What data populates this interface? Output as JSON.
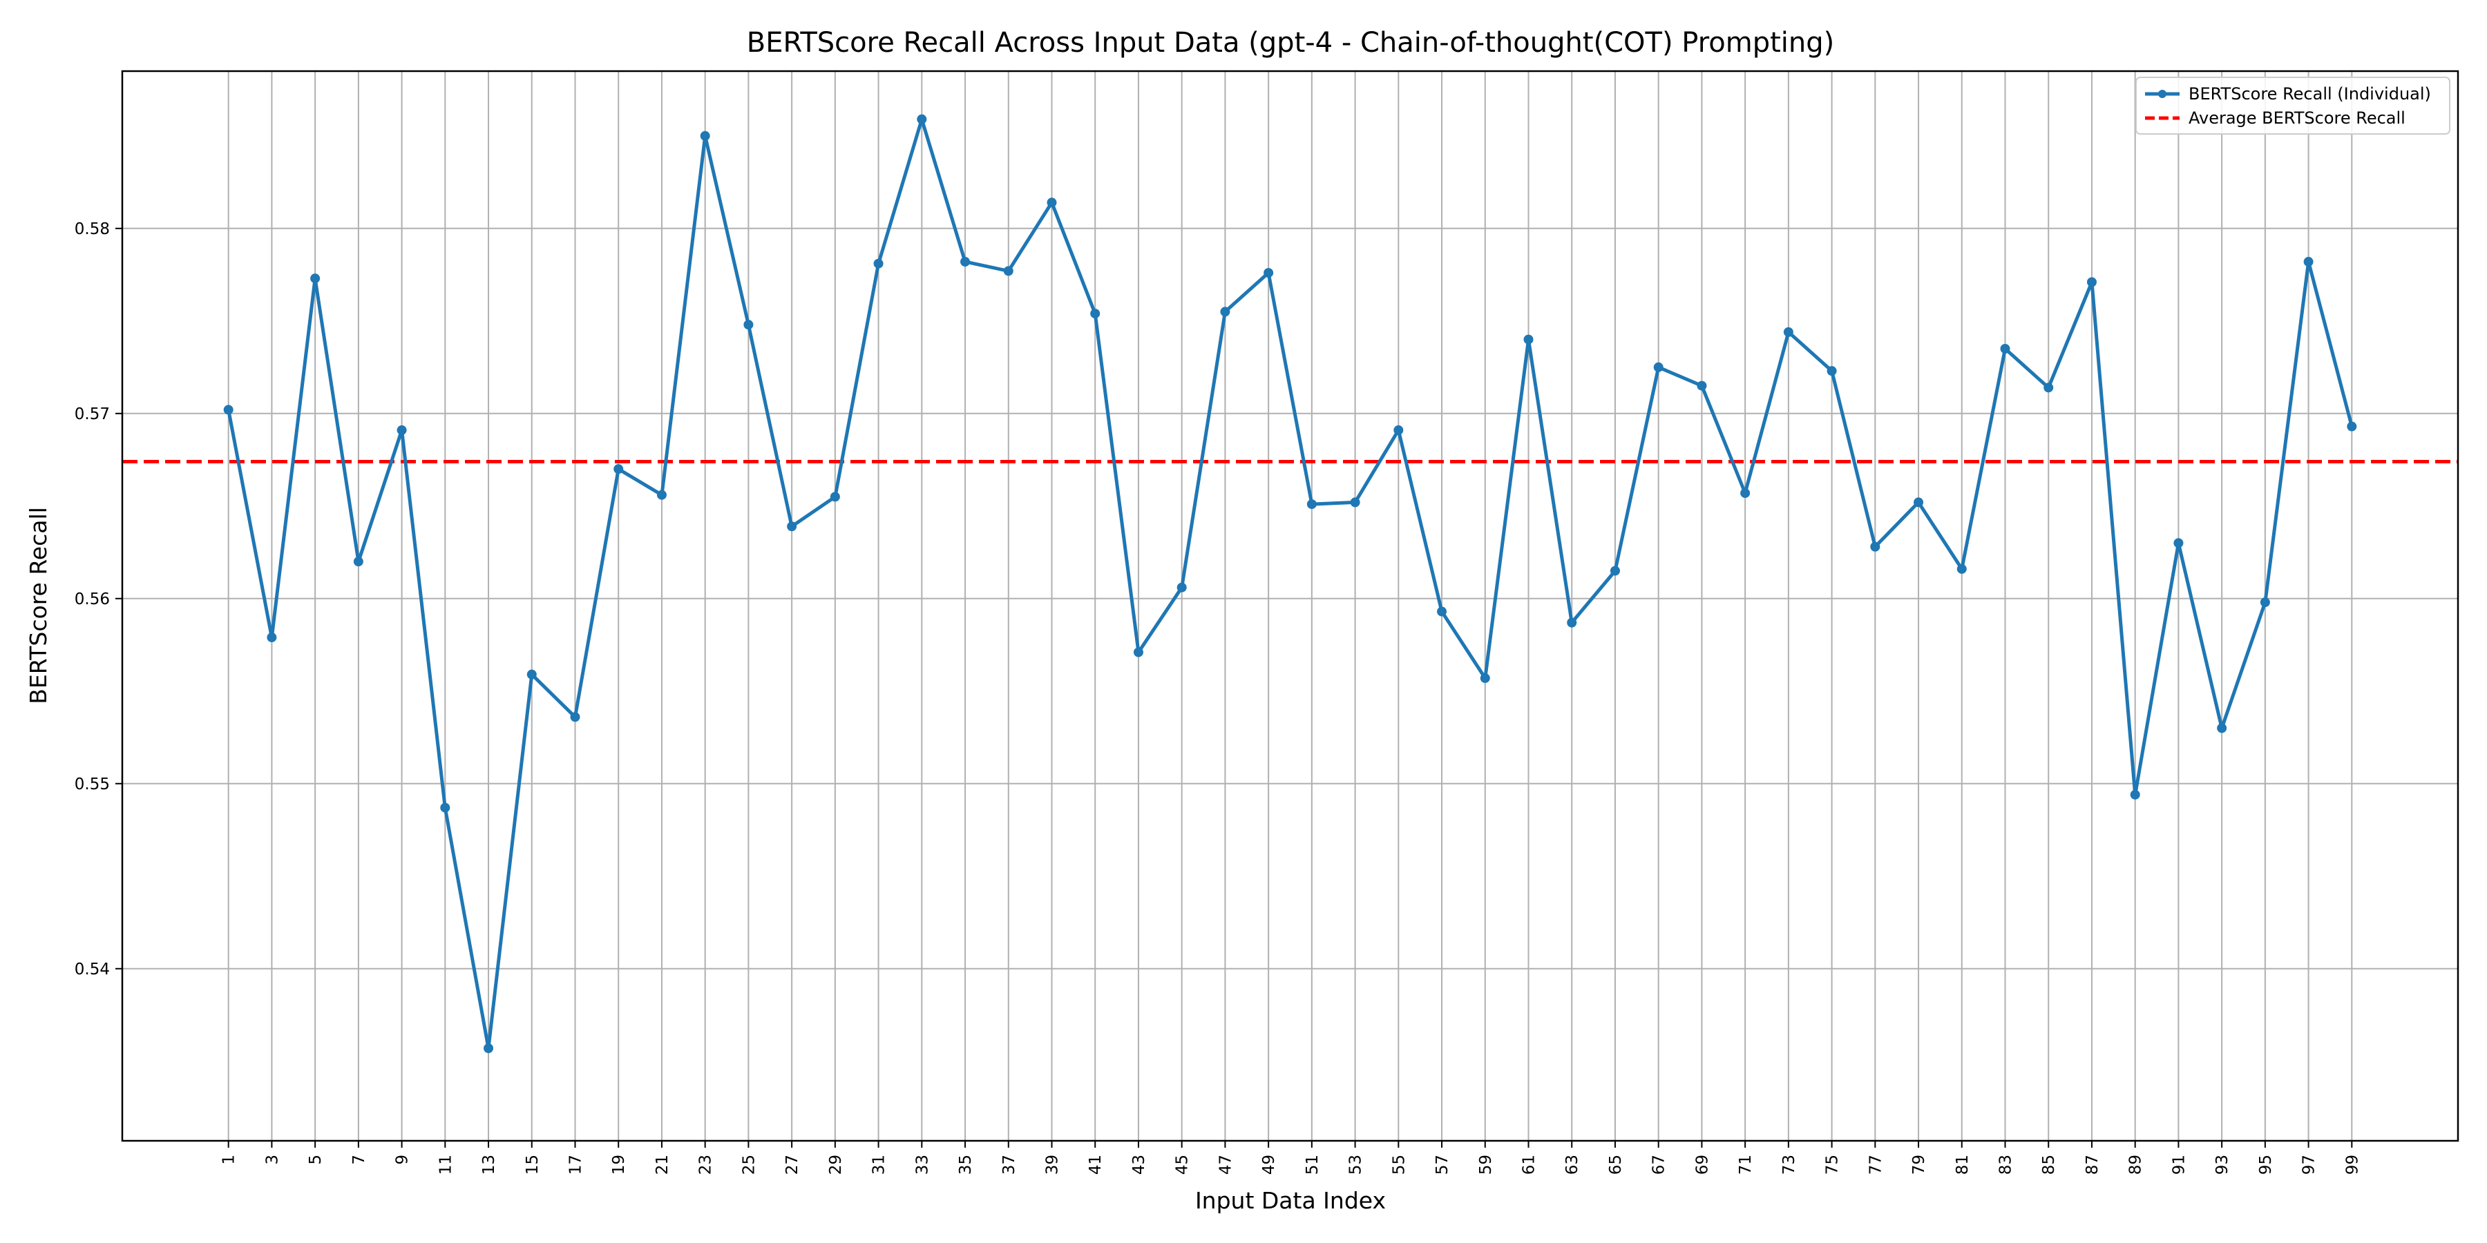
{
  "chart_data": {
    "type": "line",
    "title": "BERTScore Recall Across Input Data (gpt-4 - Chain-of-thought(COT) Prompting)",
    "xlabel": "Input Data Index",
    "ylabel": "BERTScore Recall",
    "x": [
      1,
      3,
      5,
      7,
      9,
      11,
      13,
      15,
      17,
      19,
      21,
      23,
      25,
      27,
      29,
      31,
      33,
      35,
      37,
      39,
      41,
      43,
      45,
      47,
      49,
      51,
      53,
      55,
      57,
      59,
      61,
      63,
      65,
      67,
      69,
      71,
      73,
      75,
      77,
      79,
      81,
      83,
      85,
      87,
      89,
      91,
      93,
      95,
      97,
      99
    ],
    "xticks": [
      "1",
      "3",
      "5",
      "7",
      "9",
      "11",
      "13",
      "15",
      "17",
      "19",
      "21",
      "23",
      "25",
      "27",
      "29",
      "31",
      "33",
      "35",
      "37",
      "39",
      "41",
      "43",
      "45",
      "47",
      "49",
      "51",
      "53",
      "55",
      "57",
      "59",
      "61",
      "63",
      "65",
      "67",
      "69",
      "71",
      "73",
      "75",
      "77",
      "79",
      "81",
      "83",
      "85",
      "87",
      "89",
      "91",
      "93",
      "95",
      "97",
      "99"
    ],
    "yticks": [
      "0.54",
      "0.55",
      "0.56",
      "0.57",
      "0.58"
    ],
    "ytick_values": [
      0.54,
      0.55,
      0.56,
      0.57,
      0.58
    ],
    "xlim": [
      -3.9,
      103.9
    ],
    "ylim": [
      0.5307,
      0.5885
    ],
    "grid": true,
    "legend_position": "top-right",
    "series": [
      {
        "name": "BERTScore Recall (Individual)",
        "color": "#1f77b4",
        "marker": "circle",
        "values": [
          0.5702,
          0.5579,
          0.5773,
          0.562,
          0.5691,
          0.5487,
          0.5357,
          0.5559,
          0.5536,
          0.567,
          0.5656,
          0.585,
          0.5748,
          0.5639,
          0.5655,
          0.5781,
          0.5859,
          0.5782,
          0.5777,
          0.5814,
          0.5754,
          0.5571,
          0.5606,
          0.5755,
          0.5776,
          0.5651,
          0.5652,
          0.5691,
          0.5593,
          0.5557,
          0.574,
          0.5587,
          0.5615,
          0.5725,
          0.5715,
          0.5657,
          0.5744,
          0.5723,
          0.5628,
          0.5652,
          0.5616,
          0.5735,
          0.5714,
          0.5771,
          0.5494,
          0.563,
          0.553,
          0.5598,
          0.5782,
          0.5693
        ]
      }
    ],
    "reference_lines": [
      {
        "name": "Average BERTScore Recall",
        "value": 0.5674,
        "color": "#ff0000",
        "style": "dashed"
      }
    ]
  }
}
